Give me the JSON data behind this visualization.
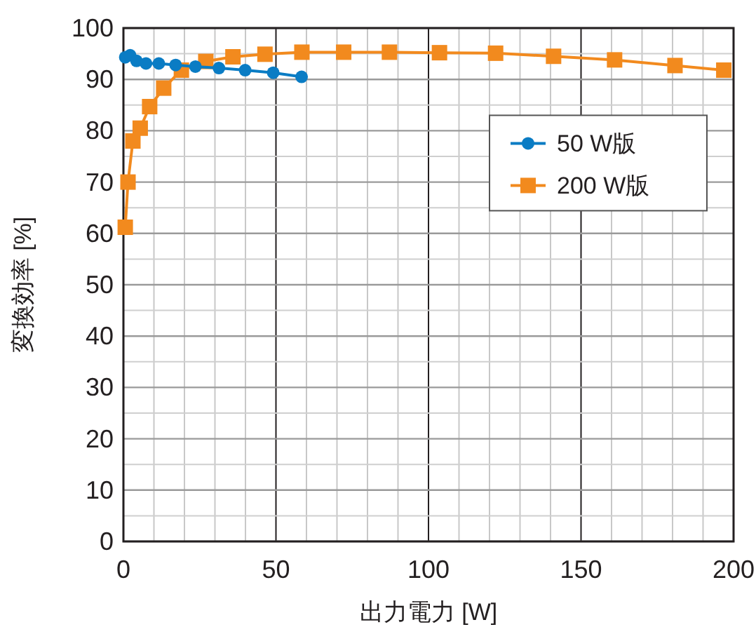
{
  "chart_data": {
    "type": "line",
    "xlabel": "出力電力 [W]",
    "ylabel": "変換効率 [%]",
    "xlim": [
      0,
      200
    ],
    "ylim": [
      0,
      100
    ],
    "xticks": [
      0,
      50,
      100,
      150,
      200
    ],
    "yticks": [
      0,
      10,
      20,
      30,
      40,
      50,
      60,
      70,
      80,
      90,
      100
    ],
    "grid": true,
    "legend": "top right",
    "line_style": "solid",
    "series": [
      {
        "name": "50 W版",
        "color": "#0a7cc4",
        "marker": "circle",
        "x": [
          0.6,
          2.2,
          4.3,
          7.4,
          11.6,
          17.1,
          23.6,
          31.3,
          39.9,
          49.1,
          58.4
        ],
        "values": [
          94.3,
          94.7,
          93.6,
          93.1,
          93.1,
          92.8,
          92.5,
          92.2,
          91.8,
          91.3,
          90.5
        ]
      },
      {
        "name": "200 W版",
        "color": "#f28a1e",
        "marker": "square",
        "x": [
          0.6,
          1.5,
          3.1,
          5.5,
          8.6,
          13.2,
          19.0,
          27.0,
          35.9,
          46.4,
          58.5,
          72.2,
          87.2,
          103.6,
          122,
          141,
          161,
          180.8,
          196.8
        ],
        "values": [
          61.2,
          70.0,
          78.0,
          80.5,
          84.7,
          88.3,
          91.8,
          93.5,
          94.4,
          94.9,
          95.3,
          95.3,
          95.3,
          95.2,
          95.1,
          94.5,
          93.8,
          92.7,
          91.8
        ]
      }
    ]
  }
}
